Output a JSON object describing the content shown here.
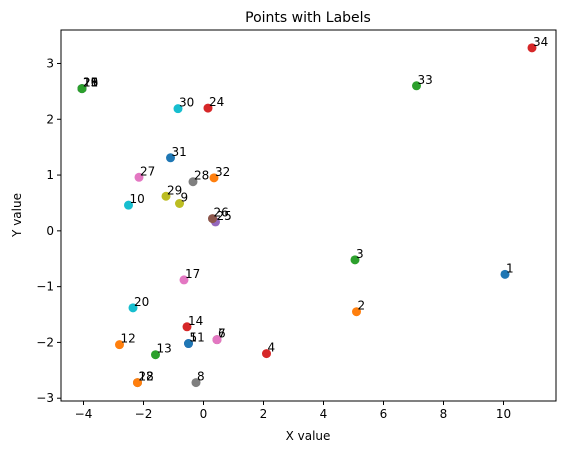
{
  "chart_data": {
    "type": "scatter",
    "title": "Points with Labels",
    "xlabel": "X value",
    "ylabel": "Y value",
    "xlim": [
      -4.75,
      11.75
    ],
    "ylim": [
      -3.05,
      3.6
    ],
    "xticks": [
      -4,
      -2,
      0,
      2,
      4,
      6,
      8,
      10
    ],
    "yticks": [
      -3,
      -2,
      -1,
      0,
      1,
      2,
      3
    ],
    "grid": false,
    "points": [
      {
        "label": "1",
        "x": 10.05,
        "y": -0.78,
        "color": "#1f77b4"
      },
      {
        "label": "2",
        "x": 5.1,
        "y": -1.45,
        "color": "#ff7f0e"
      },
      {
        "label": "3",
        "x": 5.05,
        "y": -0.52,
        "color": "#2ca02c"
      },
      {
        "label": "4",
        "x": 2.1,
        "y": -2.2,
        "color": "#d62728"
      },
      {
        "label": "5",
        "x": -0.5,
        "y": -2.02,
        "color": "#9467bd"
      },
      {
        "label": "6",
        "x": 0.45,
        "y": -1.95,
        "color": "#8c564b"
      },
      {
        "label": "7",
        "x": 0.45,
        "y": -1.95,
        "color": "#e377c2"
      },
      {
        "label": "8",
        "x": -0.25,
        "y": -2.72,
        "color": "#7f7f7f"
      },
      {
        "label": "9",
        "x": -0.8,
        "y": 0.49,
        "color": "#bcbd22"
      },
      {
        "label": "10",
        "x": -2.5,
        "y": 0.46,
        "color": "#17becf"
      },
      {
        "label": "11",
        "x": -0.5,
        "y": -2.02,
        "color": "#1f77b4"
      },
      {
        "label": "12",
        "x": -2.8,
        "y": -2.04,
        "color": "#ff7f0e"
      },
      {
        "label": "13",
        "x": -1.6,
        "y": -2.22,
        "color": "#2ca02c"
      },
      {
        "label": "14",
        "x": -0.55,
        "y": -1.72,
        "color": "#d62728"
      },
      {
        "label": "15",
        "x": -4.05,
        "y": 2.55,
        "color": "#9467bd"
      },
      {
        "label": "16",
        "x": -4.05,
        "y": 2.55,
        "color": "#8c564b"
      },
      {
        "label": "17",
        "x": -0.65,
        "y": -0.88,
        "color": "#e377c2"
      },
      {
        "label": "18",
        "x": -2.2,
        "y": -2.72,
        "color": "#7f7f7f"
      },
      {
        "label": "19",
        "x": -4.05,
        "y": 2.55,
        "color": "#bcbd22"
      },
      {
        "label": "20",
        "x": -2.35,
        "y": -1.38,
        "color": "#17becf"
      },
      {
        "label": "21",
        "x": -4.05,
        "y": 2.55,
        "color": "#1f77b4"
      },
      {
        "label": "22",
        "x": -2.2,
        "y": -2.72,
        "color": "#ff7f0e"
      },
      {
        "label": "23",
        "x": -4.05,
        "y": 2.55,
        "color": "#2ca02c"
      },
      {
        "label": "24",
        "x": 0.15,
        "y": 2.2,
        "color": "#d62728"
      },
      {
        "label": "25",
        "x": 0.4,
        "y": 0.16,
        "color": "#9467bd"
      },
      {
        "label": "26",
        "x": 0.3,
        "y": 0.22,
        "color": "#8c564b"
      },
      {
        "label": "27",
        "x": -2.15,
        "y": 0.96,
        "color": "#e377c2"
      },
      {
        "label": "28",
        "x": -0.35,
        "y": 0.88,
        "color": "#7f7f7f"
      },
      {
        "label": "29",
        "x": -1.25,
        "y": 0.62,
        "color": "#bcbd22"
      },
      {
        "label": "30",
        "x": -0.85,
        "y": 2.19,
        "color": "#17becf"
      },
      {
        "label": "31",
        "x": -1.1,
        "y": 1.31,
        "color": "#1f77b4"
      },
      {
        "label": "32",
        "x": 0.35,
        "y": 0.95,
        "color": "#ff7f0e"
      },
      {
        "label": "33",
        "x": 7.1,
        "y": 2.6,
        "color": "#2ca02c"
      },
      {
        "label": "34",
        "x": 10.95,
        "y": 3.28,
        "color": "#d62728"
      }
    ]
  }
}
